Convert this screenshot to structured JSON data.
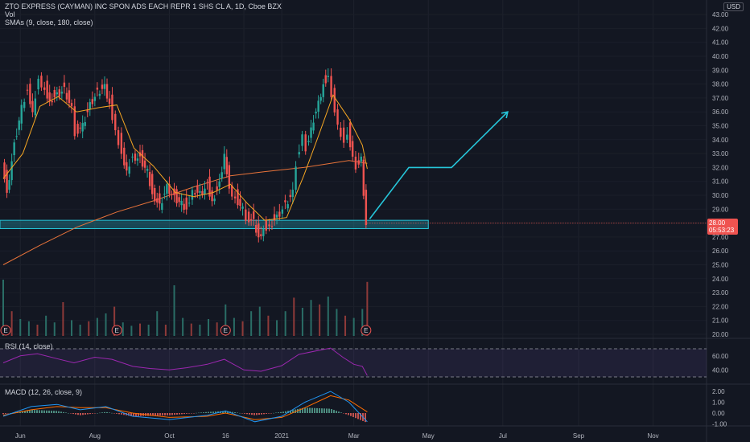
{
  "header": {
    "symbol_line": "ZTO EXPRESS (CAYMAN) INC SPON ADS EACH REPR 1 SHS CL A, 1D, Cboe BZX",
    "vol_label": "Vol",
    "sma_label": "SMAs (9, close, 180, close)"
  },
  "currency_badge": "USD",
  "last_price": {
    "value": "28.00",
    "countdown": "05:53:23"
  },
  "price_axis_labels": [
    "43.00",
    "42.00",
    "41.00",
    "40.00",
    "39.00",
    "38.00",
    "37.00",
    "36.00",
    "35.00",
    "34.00",
    "33.00",
    "32.00",
    "31.00",
    "30.00",
    "29.00",
    "28.00",
    "27.00",
    "26.00",
    "25.00",
    "24.00",
    "23.00",
    "22.00",
    "21.00",
    "20.00"
  ],
  "rsi_label": "RSI (14, close)",
  "rsi_axis_labels": [
    "60.00",
    "40.00"
  ],
  "macd_label": "MACD (12, 26, close, 9)",
  "macd_axis_labels": [
    "2.00",
    "1.00",
    "0.00",
    "-1.00"
  ],
  "time_axis_labels": [
    "Jun",
    "Aug",
    "Oct",
    "16",
    "2021",
    "Mar",
    "May",
    "Jul",
    "Sep",
    "Nov"
  ],
  "earnings_marker": "E",
  "colors": {
    "up": "#26a69a",
    "down": "#ef5350",
    "sma_fast": "#f5a623",
    "sma_slow": "#e8733a",
    "rsi": "#9c27b0",
    "macd": "#2196f3",
    "signal": "#ff6d00",
    "zone": "#26c6da",
    "projection": "#26c6da",
    "background": "#131722"
  },
  "chart_data": {
    "type": "candlestick",
    "title": "ZTO EXPRESS (CAYMAN) INC SPON ADS EACH REPR 1 SHS CL A, 1D, Cboe BZX",
    "ylim": [
      20,
      43.5
    ],
    "price_path": [
      [
        "2020-05-18",
        32.8
      ],
      [
        "2020-05-22",
        30.4
      ],
      [
        "2020-05-28",
        33.8
      ],
      [
        "2020-06-03",
        36.5
      ],
      [
        "2020-06-08",
        37.8
      ],
      [
        "2020-06-12",
        36.2
      ],
      [
        "2020-06-17",
        38.6
      ],
      [
        "2020-06-22",
        37.8
      ],
      [
        "2020-06-26",
        37.0
      ],
      [
        "2020-07-02",
        37.4
      ],
      [
        "2020-07-08",
        37.8
      ],
      [
        "2020-07-14",
        36.4
      ],
      [
        "2020-07-17",
        34.7
      ],
      [
        "2020-07-23",
        35.2
      ],
      [
        "2020-07-29",
        36.7
      ],
      [
        "2020-08-04",
        37.6
      ],
      [
        "2020-08-10",
        38.0
      ],
      [
        "2020-08-14",
        36.8
      ],
      [
        "2020-08-19",
        34.9
      ],
      [
        "2020-08-24",
        33.2
      ],
      [
        "2020-08-28",
        32.0
      ],
      [
        "2020-09-02",
        33.0
      ],
      [
        "2020-09-08",
        32.8
      ],
      [
        "2020-09-14",
        31.9
      ],
      [
        "2020-09-18",
        30.3
      ],
      [
        "2020-09-24",
        29.4
      ],
      [
        "2020-09-30",
        30.8
      ],
      [
        "2020-10-06",
        30.0
      ],
      [
        "2020-10-12",
        29.6
      ],
      [
        "2020-10-16",
        29.2
      ],
      [
        "2020-10-21",
        30.6
      ],
      [
        "2020-10-27",
        30.3
      ],
      [
        "2020-11-02",
        30.9
      ],
      [
        "2020-11-06",
        29.8
      ],
      [
        "2020-11-12",
        31.0
      ],
      [
        "2020-11-16",
        33.2
      ],
      [
        "2020-11-20",
        30.7
      ],
      [
        "2020-11-25",
        30.0
      ],
      [
        "2020-12-01",
        29.2
      ],
      [
        "2020-12-04",
        28.6
      ],
      [
        "2020-12-10",
        28.3
      ],
      [
        "2020-12-14",
        27.2
      ],
      [
        "2020-12-18",
        27.8
      ],
      [
        "2020-12-23",
        28.0
      ],
      [
        "2020-12-29",
        28.6
      ],
      [
        "2021-01-05",
        29.5
      ],
      [
        "2021-01-11",
        30.4
      ],
      [
        "2021-01-14",
        32.5
      ],
      [
        "2021-01-19",
        34.6
      ],
      [
        "2021-01-22",
        33.6
      ],
      [
        "2021-01-26",
        35.1
      ],
      [
        "2021-02-01",
        36.8
      ],
      [
        "2021-02-05",
        38.2
      ],
      [
        "2021-02-09",
        38.8
      ],
      [
        "2021-02-12",
        37.5
      ],
      [
        "2021-02-17",
        35.3
      ],
      [
        "2021-02-22",
        34.0
      ],
      [
        "2021-02-25",
        34.8
      ],
      [
        "2021-03-01",
        33.0
      ],
      [
        "2021-03-04",
        32.3
      ],
      [
        "2021-03-08",
        33.0
      ],
      [
        "2021-03-10",
        30.4
      ],
      [
        "2021-03-12",
        28.3
      ]
    ],
    "sma_9": [
      [
        "2020-05-18",
        31.2
      ],
      [
        "2020-06-03",
        33.0
      ],
      [
        "2020-06-17",
        36.4
      ],
      [
        "2020-07-02",
        37.1
      ],
      [
        "2020-07-17",
        36.0
      ],
      [
        "2020-08-04",
        36.3
      ],
      [
        "2020-08-19",
        36.5
      ],
      [
        "2020-09-02",
        33.4
      ],
      [
        "2020-09-18",
        32.1
      ],
      [
        "2020-10-06",
        30.2
      ],
      [
        "2020-10-21",
        29.9
      ],
      [
        "2020-11-06",
        30.2
      ],
      [
        "2020-11-20",
        30.8
      ],
      [
        "2020-12-04",
        29.4
      ],
      [
        "2020-12-18",
        28.2
      ],
      [
        "2021-01-05",
        28.4
      ],
      [
        "2021-01-19",
        31.4
      ],
      [
        "2021-02-01",
        34.5
      ],
      [
        "2021-02-12",
        37.2
      ],
      [
        "2021-02-25",
        35.5
      ],
      [
        "2021-03-08",
        33.6
      ],
      [
        "2021-03-12",
        31.9
      ]
    ],
    "sma_180": [
      [
        "2020-05-18",
        25.0
      ],
      [
        "2020-06-17",
        26.4
      ],
      [
        "2020-07-17",
        27.7
      ],
      [
        "2020-08-19",
        28.8
      ],
      [
        "2020-09-18",
        29.6
      ],
      [
        "2020-10-21",
        30.6
      ],
      [
        "2020-11-20",
        31.4
      ],
      [
        "2020-12-18",
        31.7
      ],
      [
        "2021-01-19",
        32.0
      ],
      [
        "2021-02-25",
        32.5
      ],
      [
        "2021-03-12",
        32.3
      ]
    ],
    "support_zone": {
      "from": "2020-05-18",
      "to": "2021-05-01",
      "low": 27.6,
      "high": 28.2
    },
    "projection": [
      [
        "2021-03-14",
        28.3
      ],
      [
        "2021-04-15",
        32.0
      ],
      [
        "2021-05-20",
        32.0
      ],
      [
        "2021-07-05",
        36.0
      ]
    ],
    "last_price": 28.0,
    "earnings_dates": [
      "2020-05-20",
      "2020-08-19",
      "2020-11-16",
      "2021-03-11"
    ],
    "volume": [
      [
        "2020-05-18",
        5
      ],
      [
        "2020-05-25",
        2.2
      ],
      [
        "2020-06-01",
        1.5
      ],
      [
        "2020-06-08",
        1.3
      ],
      [
        "2020-06-15",
        1.0
      ],
      [
        "2020-06-22",
        1.8
      ],
      [
        "2020-06-29",
        1.2
      ],
      [
        "2020-07-06",
        3.0
      ],
      [
        "2020-07-13",
        1.4
      ],
      [
        "2020-07-20",
        1.0
      ],
      [
        "2020-07-27",
        1.3
      ],
      [
        "2020-08-03",
        1.6
      ],
      [
        "2020-08-10",
        2.0
      ],
      [
        "2020-08-17",
        2.6
      ],
      [
        "2020-08-24",
        1.2
      ],
      [
        "2020-08-31",
        0.9
      ],
      [
        "2020-09-07",
        1.1
      ],
      [
        "2020-09-14",
        1.0
      ],
      [
        "2020-09-21",
        2.2
      ],
      [
        "2020-09-28",
        1.0
      ],
      [
        "2020-10-05",
        4.5
      ],
      [
        "2020-10-12",
        1.6
      ],
      [
        "2020-10-19",
        1.1
      ],
      [
        "2020-10-26",
        1.0
      ],
      [
        "2020-11-02",
        1.5
      ],
      [
        "2020-11-09",
        1.2
      ],
      [
        "2020-11-16",
        2.8
      ],
      [
        "2020-11-23",
        1.6
      ],
      [
        "2020-11-30",
        1.3
      ],
      [
        "2020-12-07",
        2.2
      ],
      [
        "2020-12-14",
        2.6
      ],
      [
        "2020-12-21",
        1.8
      ],
      [
        "2020-12-28",
        1.4
      ],
      [
        "2021-01-04",
        2.2
      ],
      [
        "2021-01-11",
        3.4
      ],
      [
        "2021-01-18",
        2.5
      ],
      [
        "2021-01-25",
        3.2
      ],
      [
        "2021-02-01",
        2.8
      ],
      [
        "2021-02-08",
        3.5
      ],
      [
        "2021-02-15",
        2.4
      ],
      [
        "2021-02-22",
        1.8
      ],
      [
        "2021-03-01",
        1.6
      ],
      [
        "2021-03-08",
        2.4
      ],
      [
        "2021-03-12",
        4.8
      ]
    ],
    "rsi": {
      "bands": [
        70,
        30
      ],
      "values": [
        [
          "2020-05-18",
          50
        ],
        [
          "2020-06-01",
          60
        ],
        [
          "2020-06-15",
          63
        ],
        [
          "2020-07-01",
          56
        ],
        [
          "2020-07-15",
          50
        ],
        [
          "2020-08-01",
          58
        ],
        [
          "2020-08-15",
          55
        ],
        [
          "2020-09-01",
          45
        ],
        [
          "2020-09-15",
          42
        ],
        [
          "2020-10-01",
          40
        ],
        [
          "2020-10-15",
          43
        ],
        [
          "2020-11-01",
          48
        ],
        [
          "2020-11-15",
          55
        ],
        [
          "2020-12-01",
          40
        ],
        [
          "2020-12-15",
          38
        ],
        [
          "2021-01-01",
          46
        ],
        [
          "2021-01-15",
          62
        ],
        [
          "2021-02-01",
          68
        ],
        [
          "2021-02-10",
          71
        ],
        [
          "2021-02-20",
          58
        ],
        [
          "2021-03-01",
          48
        ],
        [
          "2021-03-08",
          45
        ],
        [
          "2021-03-12",
          32
        ]
      ]
    },
    "macd": {
      "macd": [
        [
          "2020-05-18",
          -0.3
        ],
        [
          "2020-06-10",
          0.6
        ],
        [
          "2020-07-01",
          0.8
        ],
        [
          "2020-07-20",
          0.3
        ],
        [
          "2020-08-10",
          0.6
        ],
        [
          "2020-09-01",
          -0.3
        ],
        [
          "2020-10-01",
          -0.6
        ],
        [
          "2020-11-01",
          -0.2
        ],
        [
          "2020-11-16",
          0.2
        ],
        [
          "2020-12-10",
          -0.8
        ],
        [
          "2021-01-01",
          -0.3
        ],
        [
          "2021-01-20",
          1.0
        ],
        [
          "2021-02-10",
          2.0
        ],
        [
          "2021-02-25",
          1.0
        ],
        [
          "2021-03-12",
          -0.8
        ]
      ],
      "signal": [
        [
          "2020-05-18",
          -0.2
        ],
        [
          "2020-06-10",
          0.3
        ],
        [
          "2020-07-01",
          0.6
        ],
        [
          "2020-07-20",
          0.5
        ],
        [
          "2020-08-10",
          0.5
        ],
        [
          "2020-09-01",
          0.0
        ],
        [
          "2020-10-01",
          -0.4
        ],
        [
          "2020-11-01",
          -0.3
        ],
        [
          "2020-11-16",
          0.0
        ],
        [
          "2020-12-10",
          -0.6
        ],
        [
          "2021-01-01",
          -0.4
        ],
        [
          "2021-01-20",
          0.5
        ],
        [
          "2021-02-10",
          1.6
        ],
        [
          "2021-02-25",
          1.2
        ],
        [
          "2021-03-12",
          0.1
        ]
      ]
    }
  }
}
